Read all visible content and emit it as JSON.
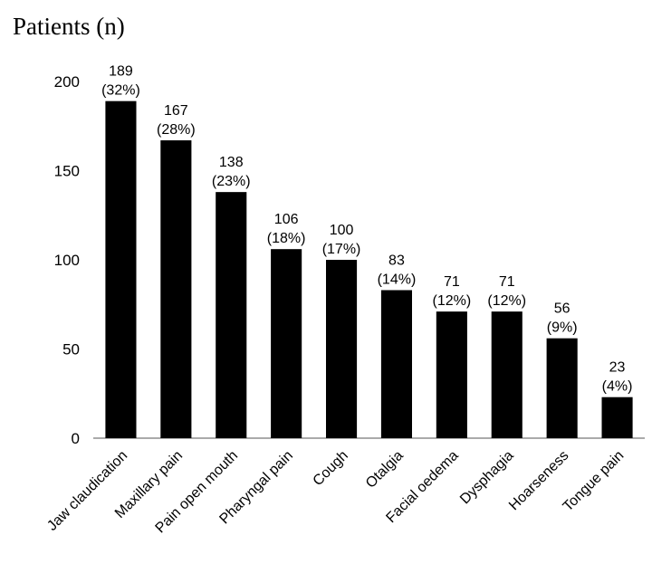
{
  "chart_data": {
    "type": "bar",
    "title": "",
    "xlabel": "",
    "ylabel": "Patients (n)",
    "ylim": [
      0,
      200
    ],
    "yticks": [
      0,
      50,
      100,
      150,
      200
    ],
    "grid": false,
    "bar_color": "#000000",
    "categories": [
      "Jaw claudication",
      "Maxillary pain",
      "Pain open mouth",
      "Pharyngal pain",
      "Cough",
      "Otalgia",
      "Facial oedema",
      "Dysphagia",
      "Hoarseness",
      "Tongue pain"
    ],
    "values": [
      189,
      167,
      138,
      106,
      100,
      83,
      71,
      71,
      56,
      23
    ],
    "percent_labels": [
      "(32%)",
      "(28%)",
      "(23%)",
      "(18%)",
      "(17%)",
      "(14%)",
      "(12%)",
      "(12%)",
      "(9%)",
      "(4%)"
    ]
  }
}
